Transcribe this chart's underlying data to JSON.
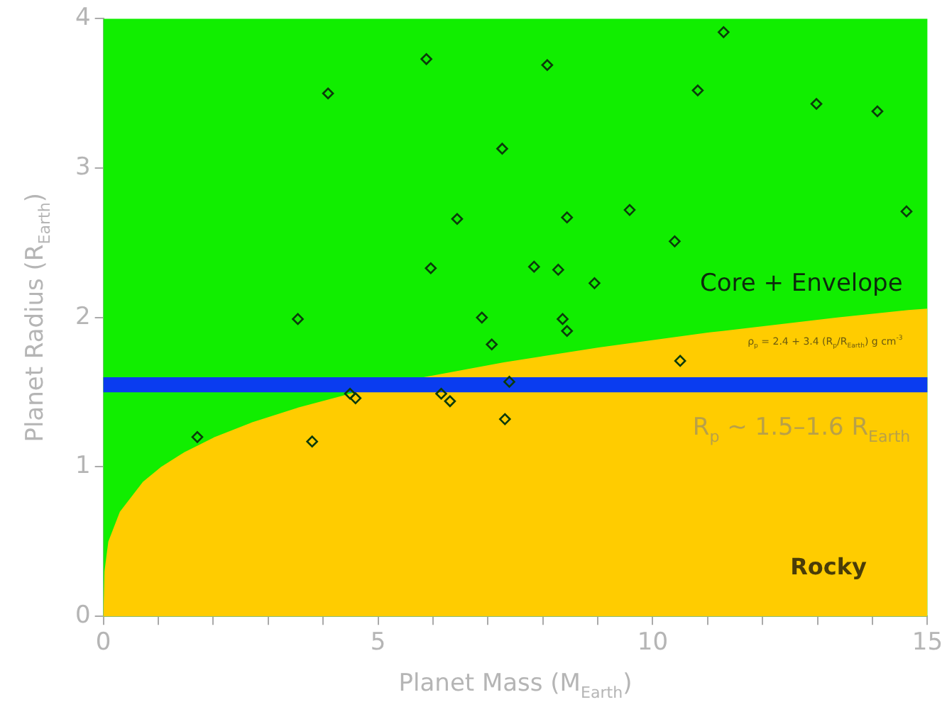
{
  "chart_data": {
    "type": "scatter",
    "xlabel": "Planet Mass (M$_{Earth}$)",
    "ylabel": "Planet Radius (R$_{Earth}$)",
    "xlim": [
      0,
      15
    ],
    "ylim": [
      0,
      4
    ],
    "xticks": [
      0,
      {
        "value": 1,
        "label": null
      },
      {
        "value": 2,
        "label": null
      },
      {
        "value": 3,
        "label": null
      },
      {
        "value": 4,
        "label": null
      },
      5,
      {
        "value": 6,
        "label": null
      },
      {
        "value": 7,
        "label": null
      },
      {
        "value": 8,
        "label": null
      },
      {
        "value": 9,
        "label": null
      },
      10,
      {
        "value": 11,
        "label": null
      },
      {
        "value": 12,
        "label": null
      },
      {
        "value": 13,
        "label": null
      },
      {
        "value": 14,
        "label": null
      },
      15
    ],
    "yticks": [
      0,
      1,
      2,
      3,
      4
    ],
    "bands": [
      {
        "axis": "y",
        "from": 0,
        "to": 4,
        "color": "#11ee00"
      },
      {
        "axis": "y",
        "from": 1.5,
        "to": 1.6,
        "color": "#0a3cf0",
        "label": "R$_{p}$ ~ 1.5–1.6 R$_{Earth}$"
      }
    ],
    "annotations": [
      "Core + Envelope",
      "ρ$_{p}$ = 2.4 + 3.4 (R$_{p}$/R$_{Earth}$) g cm$^{-3}$",
      "Rocky"
    ],
    "series": [
      {
        "type": "area",
        "color": "#ffcc00",
        "x": [
          0,
          0.02,
          0.09,
          0.3,
          0.72,
          1.05,
          1.48,
          2.03,
          2.72,
          3.57,
          4.59,
          5.83,
          7.29,
          9.02,
          11.03,
          13.36,
          14.65,
          15
        ],
        "values": [
          0,
          0.3,
          0.5,
          0.7,
          0.9,
          1.0,
          1.1,
          1.2,
          1.3,
          1.4,
          1.5,
          1.6,
          1.7,
          1.8,
          1.9,
          2.0,
          2.05,
          2.06
        ]
      },
      {
        "color": "#0b3a0b",
        "marker": "diamond",
        "x": [
          1.71,
          3.54,
          3.8,
          4.09,
          4.49,
          4.59,
          5.88,
          5.96,
          6.15,
          6.31,
          6.44,
          6.89,
          7.07,
          7.26,
          7.31,
          7.39,
          7.84,
          8.08,
          8.28,
          8.36,
          8.44,
          8.44,
          8.94,
          9.58,
          10.4,
          10.5,
          10.82,
          11.29,
          12.98,
          14.09,
          14.62
        ],
        "values": [
          1.2,
          1.99,
          1.17,
          3.5,
          1.49,
          1.46,
          3.73,
          2.33,
          1.49,
          1.44,
          2.66,
          2.0,
          1.82,
          3.13,
          1.32,
          1.57,
          2.34,
          3.69,
          2.32,
          1.99,
          1.91,
          2.67,
          2.23,
          2.72,
          2.51,
          1.71,
          3.52,
          3.91,
          3.43,
          3.38,
          2.71
        ]
      }
    ]
  }
}
